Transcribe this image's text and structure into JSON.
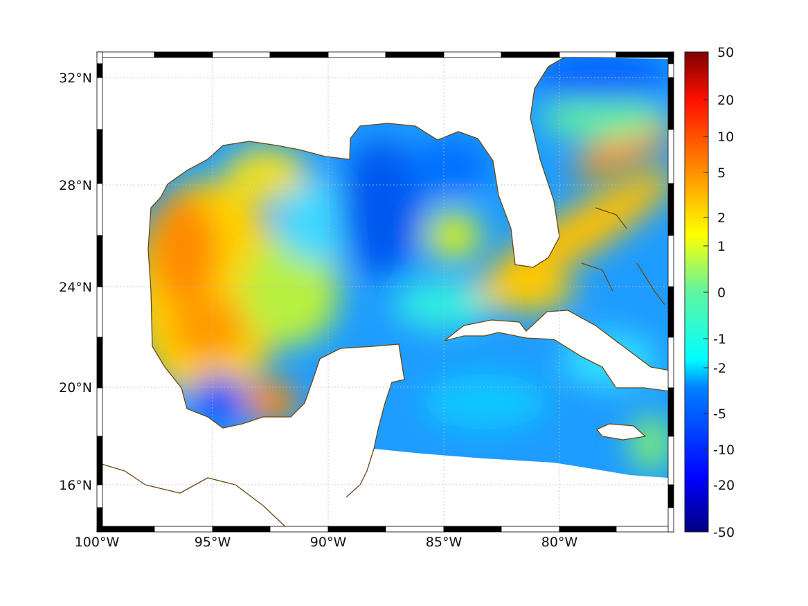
{
  "map": {
    "lon_ticks": [
      "100°W",
      "95°W",
      "90°W",
      "85°W",
      "80°W"
    ],
    "lat_ticks": [
      "32°N",
      "28°N",
      "24°N",
      "20°N",
      "16°N"
    ],
    "coast_color": "#6b4712"
  },
  "colorbar": {
    "ticks": [
      "50",
      "20",
      "10",
      "5",
      "2",
      "1",
      "0",
      "-1",
      "-2",
      "-5",
      "-10",
      "-20",
      "-50"
    ],
    "colormap": "jet"
  }
}
